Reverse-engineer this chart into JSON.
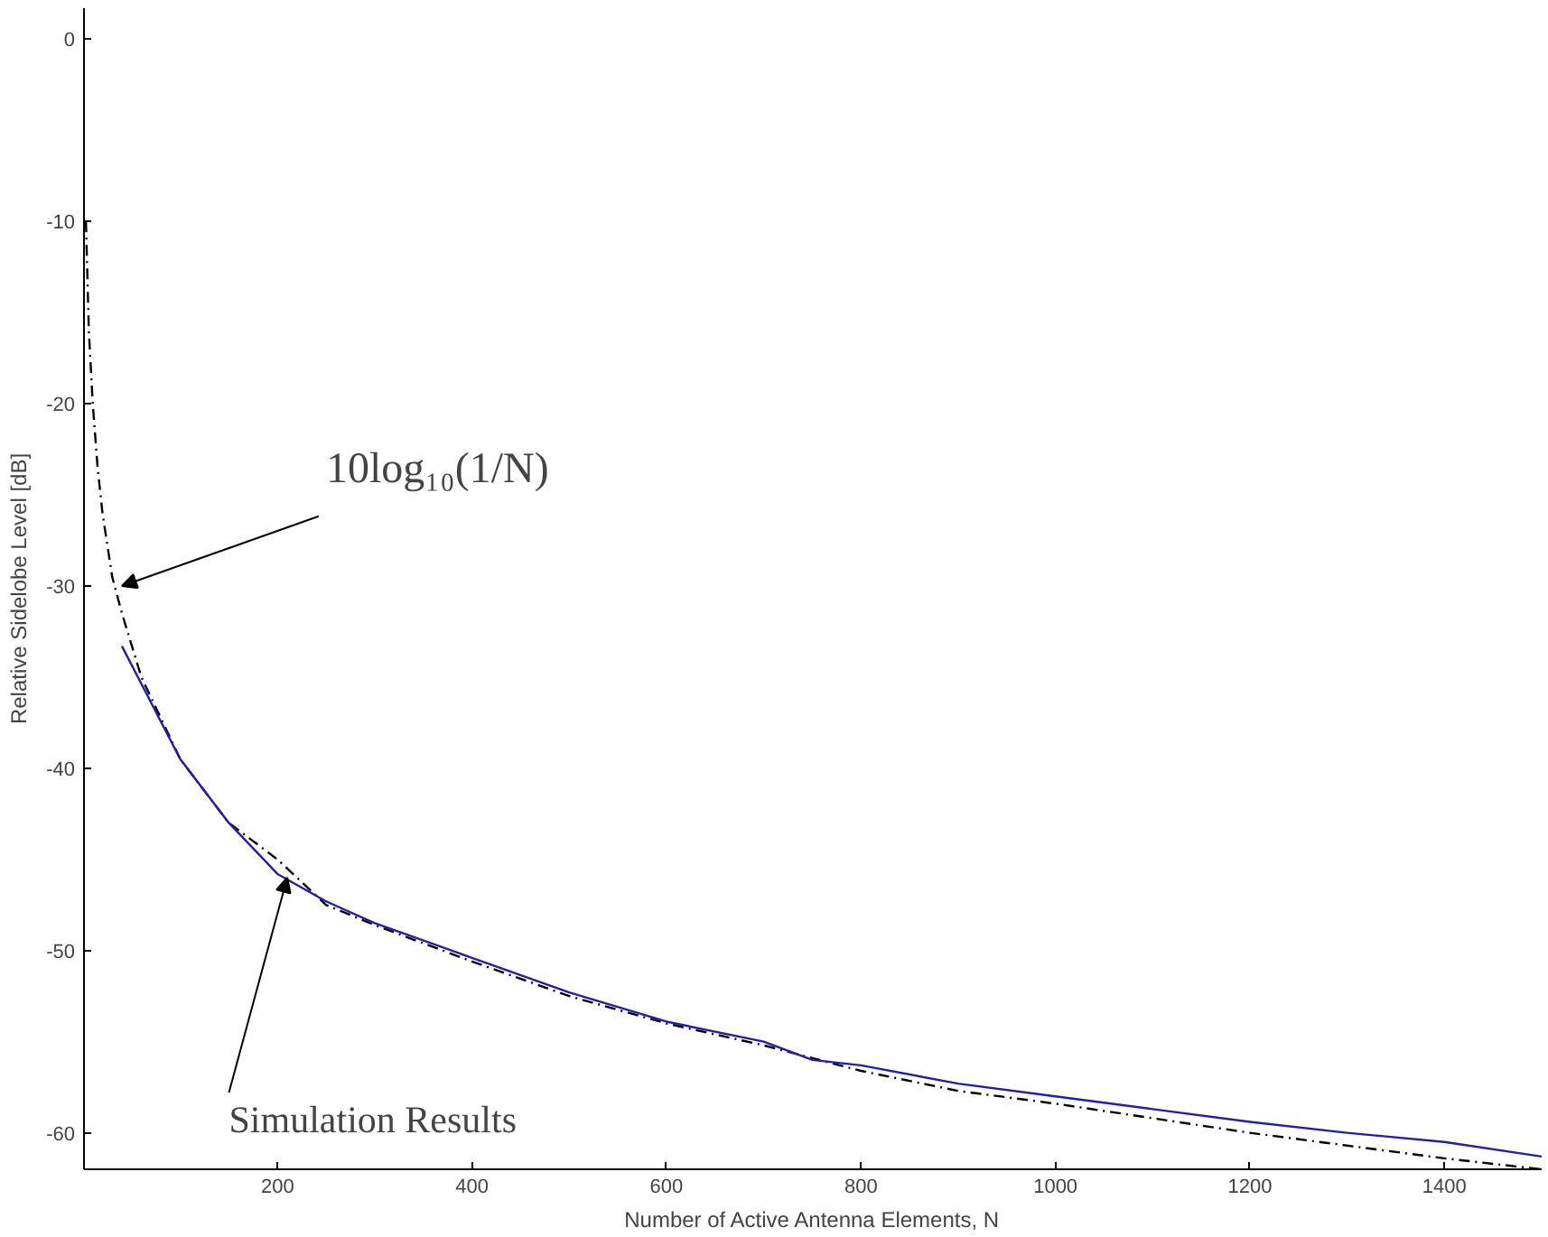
{
  "chart_data": {
    "type": "line",
    "xlabel": "Number of Active Antenna Elements, N",
    "ylabel": "Relative Sidelobe Level [dB]",
    "xlim": [
      1,
      1500
    ],
    "ylim": [
      -62,
      1.7
    ],
    "xticks": [
      200,
      400,
      600,
      800,
      1000,
      1200,
      1400
    ],
    "yticks": [
      -60,
      -50,
      -40,
      -30,
      -20,
      -10,
      0
    ],
    "grid": false,
    "series": [
      {
        "color": "#000000",
        "line_style": "dashed",
        "x": [
          3,
          6,
          10,
          15,
          20,
          30,
          40,
          60,
          100,
          150,
          200,
          250,
          300,
          400,
          500,
          600,
          700,
          800,
          900,
          1000,
          1100,
          1200,
          1300,
          1400,
          1500
        ],
        "values": [
          -10,
          -16,
          -20,
          -23.5,
          -26,
          -29.5,
          -31.5,
          -35,
          -39.5,
          -43,
          -45,
          -47.5,
          -48.6,
          -50.6,
          -52.5,
          -54,
          -55.2,
          -56.6,
          -57.7,
          -58.4,
          -59.2,
          -60,
          -60.7,
          -61.4,
          -62
        ]
      },
      {
        "color": "#2020a0",
        "line_style": "solid",
        "x": [
          40,
          100,
          150,
          200,
          250,
          300,
          400,
          500,
          600,
          700,
          750,
          800,
          900,
          1000,
          1100,
          1200,
          1300,
          1400,
          1500
        ],
        "values": [
          -33.3,
          -39.5,
          -43,
          -45.8,
          -47.3,
          -48.5,
          -50.4,
          -52.3,
          -53.9,
          -55,
          -56,
          -56.3,
          -57.3,
          -58,
          -58.7,
          -59.4,
          -60,
          -60.5,
          -61.3
        ]
      }
    ],
    "annotations": [
      {
        "text": "10log₁₀(1/N)",
        "x": 40,
        "y": -30
      },
      {
        "text": "Simulation Results",
        "x": 210,
        "y": -46
      }
    ]
  }
}
